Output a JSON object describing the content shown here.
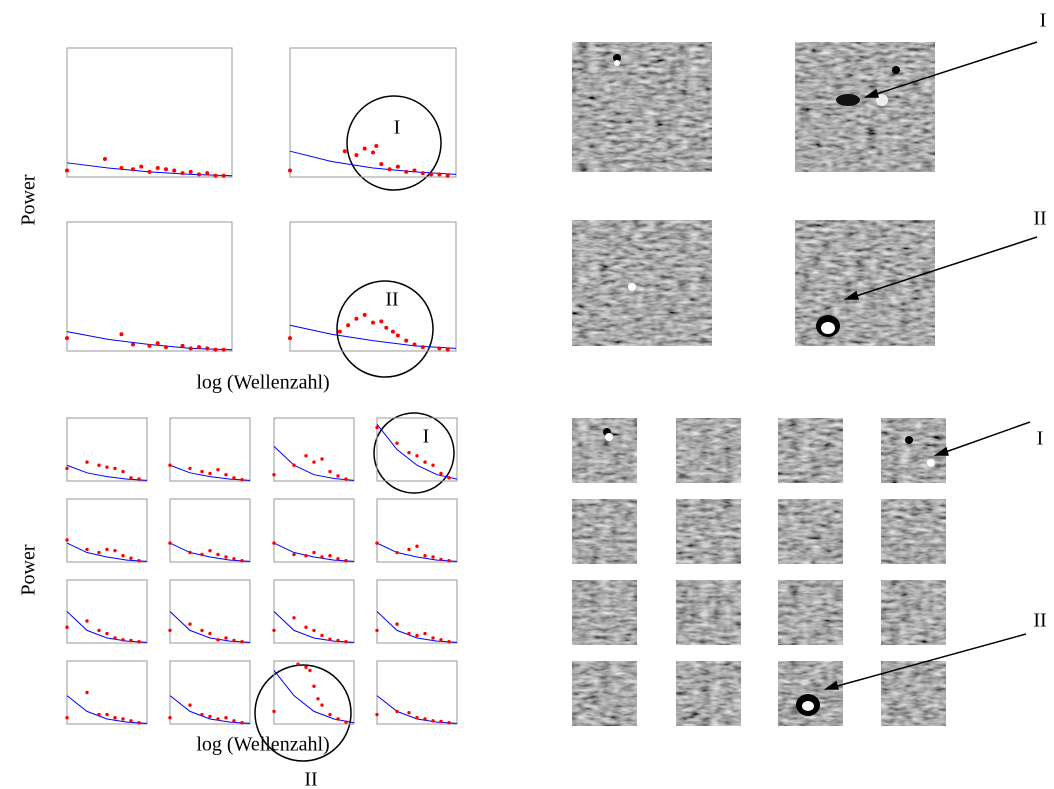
{
  "labels": {
    "y_label_top": "Power",
    "x_label_top": "log (Wellenzahl)",
    "y_label_bottom": "Power",
    "x_label_bottom": "log (Wellenzahl)"
  },
  "annotations": [
    {
      "text": "I"
    },
    {
      "text": "II"
    },
    {
      "text": "I"
    },
    {
      "text": "II"
    },
    {
      "text": "I"
    },
    {
      "text": "II"
    },
    {
      "text": "I"
    },
    {
      "text": "II"
    }
  ],
  "chart_data": [
    {
      "type": "scatter",
      "xlim": [
        0,
        1
      ],
      "ylim": [
        0,
        1
      ],
      "points": {
        "color": "#ff0000",
        "x": [
          0,
          0.23,
          0.33,
          0.4,
          0.45,
          0.5,
          0.55,
          0.6,
          0.65,
          0.7,
          0.75,
          0.8,
          0.85,
          0.9,
          0.95
        ],
        "values": [
          0.05,
          0.14,
          0.07,
          0.06,
          0.08,
          0.04,
          0.07,
          0.06,
          0.05,
          0.03,
          0.04,
          0.02,
          0.03,
          0.01,
          0.01
        ]
      },
      "fit": {
        "color": "#0000ff",
        "x": [
          0,
          0.25,
          0.5,
          0.75,
          1
        ],
        "values": [
          0.11,
          0.07,
          0.04,
          0.02,
          0.01
        ]
      }
    },
    {
      "type": "scatter",
      "xlim": [
        0,
        1
      ],
      "ylim": [
        0,
        1
      ],
      "points": {
        "color": "#ff0000",
        "x": [
          0,
          0.33,
          0.4,
          0.45,
          0.5,
          0.52,
          0.55,
          0.6,
          0.65,
          0.7,
          0.75,
          0.8,
          0.85,
          0.9,
          0.95
        ],
        "values": [
          0.05,
          0.2,
          0.17,
          0.22,
          0.19,
          0.24,
          0.1,
          0.06,
          0.08,
          0.04,
          0.05,
          0.03,
          0.02,
          0.02,
          0.01
        ]
      },
      "fit": {
        "color": "#0000ff",
        "x": [
          0,
          0.25,
          0.5,
          0.75,
          1
        ],
        "values": [
          0.2,
          0.12,
          0.07,
          0.04,
          0.02
        ]
      }
    },
    {
      "type": "scatter",
      "xlim": [
        0,
        1
      ],
      "ylim": [
        0,
        1
      ],
      "points": {
        "color": "#ff0000",
        "x": [
          0,
          0.33,
          0.4,
          0.5,
          0.55,
          0.6,
          0.7,
          0.75,
          0.8,
          0.85,
          0.9,
          0.95
        ],
        "values": [
          0.1,
          0.13,
          0.05,
          0.04,
          0.06,
          0.03,
          0.04,
          0.02,
          0.03,
          0.02,
          0.01,
          0.01
        ]
      },
      "fit": {
        "color": "#0000ff",
        "x": [
          0,
          0.25,
          0.5,
          0.75,
          1
        ],
        "values": [
          0.15,
          0.09,
          0.05,
          0.02,
          0.01
        ]
      }
    },
    {
      "type": "scatter",
      "xlim": [
        0,
        1
      ],
      "ylim": [
        0,
        1
      ],
      "points": {
        "color": "#ff0000",
        "x": [
          0,
          0.3,
          0.35,
          0.4,
          0.45,
          0.5,
          0.55,
          0.58,
          0.62,
          0.65,
          0.7,
          0.75,
          0.8,
          0.9,
          0.95
        ],
        "values": [
          0.1,
          0.15,
          0.2,
          0.25,
          0.28,
          0.22,
          0.23,
          0.18,
          0.15,
          0.12,
          0.08,
          0.05,
          0.03,
          0.02,
          0.01
        ]
      },
      "fit": {
        "color": "#0000ff",
        "x": [
          0,
          0.25,
          0.5,
          0.75,
          1
        ],
        "values": [
          0.2,
          0.13,
          0.08,
          0.04,
          0.02
        ]
      }
    },
    {
      "type": "scatter",
      "xlim": [
        0,
        1
      ],
      "ylim": [
        0,
        1
      ],
      "points": {
        "color": "#ff0000",
        "x": [
          0,
          0.25,
          0.4,
          0.5,
          0.6,
          0.7,
          0.8,
          0.9
        ],
        "values": [
          0.2,
          0.3,
          0.25,
          0.22,
          0.2,
          0.15,
          0.05,
          0.03
        ]
      },
      "fit": {
        "color": "#0000ff",
        "x": [
          0,
          0.25,
          0.5,
          0.75,
          1
        ],
        "values": [
          0.25,
          0.13,
          0.07,
          0.03,
          0.01
        ]
      }
    },
    {
      "type": "scatter",
      "xlim": [
        0,
        1
      ],
      "ylim": [
        0,
        1
      ],
      "points": {
        "color": "#ff0000",
        "x": [
          0,
          0.25,
          0.4,
          0.5,
          0.6,
          0.7,
          0.8,
          0.9
        ],
        "values": [
          0.25,
          0.2,
          0.15,
          0.12,
          0.18,
          0.1,
          0.05,
          0.02
        ]
      },
      "fit": {
        "color": "#0000ff",
        "x": [
          0,
          0.25,
          0.5,
          0.75,
          1
        ],
        "values": [
          0.25,
          0.13,
          0.07,
          0.03,
          0.01
        ]
      }
    },
    {
      "type": "scatter",
      "xlim": [
        0,
        1
      ],
      "ylim": [
        0,
        1
      ],
      "points": {
        "color": "#ff0000",
        "x": [
          0,
          0.25,
          0.4,
          0.5,
          0.6,
          0.7,
          0.8,
          0.9
        ],
        "values": [
          0.1,
          0.25,
          0.4,
          0.3,
          0.35,
          0.15,
          0.08,
          0.03
        ]
      },
      "fit": {
        "color": "#0000ff",
        "x": [
          0,
          0.25,
          0.5,
          0.75,
          1
        ],
        "values": [
          0.55,
          0.25,
          0.1,
          0.04,
          0.01
        ]
      }
    },
    {
      "type": "scatter",
      "xlim": [
        0,
        1
      ],
      "ylim": [
        0,
        1
      ],
      "points": {
        "color": "#ff0000",
        "x": [
          0,
          0.25,
          0.4,
          0.5,
          0.6,
          0.7,
          0.8,
          0.9
        ],
        "values": [
          0.85,
          0.6,
          0.45,
          0.4,
          0.3,
          0.25,
          0.12,
          0.05
        ]
      },
      "fit": {
        "color": "#0000ff",
        "x": [
          0,
          0.25,
          0.5,
          0.75,
          1
        ],
        "values": [
          0.9,
          0.5,
          0.25,
          0.1,
          0.03
        ]
      }
    },
    {
      "type": "scatter",
      "xlim": [
        0,
        1
      ],
      "ylim": [
        0,
        1
      ],
      "points": {
        "color": "#ff0000",
        "x": [
          0,
          0.25,
          0.4,
          0.5,
          0.6,
          0.7,
          0.8,
          0.9
        ],
        "values": [
          0.35,
          0.2,
          0.15,
          0.2,
          0.18,
          0.1,
          0.06,
          0.02
        ]
      },
      "fit": {
        "color": "#0000ff",
        "x": [
          0,
          0.25,
          0.5,
          0.75,
          1
        ],
        "values": [
          0.3,
          0.15,
          0.08,
          0.03,
          0.01
        ]
      }
    },
    {
      "type": "scatter",
      "xlim": [
        0,
        1
      ],
      "ylim": [
        0,
        1
      ],
      "points": {
        "color": "#ff0000",
        "x": [
          0,
          0.25,
          0.4,
          0.5,
          0.6,
          0.7,
          0.8,
          0.9
        ],
        "values": [
          0.3,
          0.15,
          0.12,
          0.18,
          0.12,
          0.08,
          0.05,
          0.02
        ]
      },
      "fit": {
        "color": "#0000ff",
        "x": [
          0,
          0.25,
          0.5,
          0.75,
          1
        ],
        "values": [
          0.3,
          0.15,
          0.08,
          0.03,
          0.01
        ]
      }
    },
    {
      "type": "scatter",
      "xlim": [
        0,
        1
      ],
      "ylim": [
        0,
        1
      ],
      "points": {
        "color": "#ff0000",
        "x": [
          0,
          0.25,
          0.4,
          0.5,
          0.6,
          0.7,
          0.8,
          0.9
        ],
        "values": [
          0.3,
          0.12,
          0.1,
          0.15,
          0.08,
          0.1,
          0.05,
          0.02
        ]
      },
      "fit": {
        "color": "#0000ff",
        "x": [
          0,
          0.25,
          0.5,
          0.75,
          1
        ],
        "values": [
          0.3,
          0.15,
          0.08,
          0.03,
          0.01
        ]
      }
    },
    {
      "type": "scatter",
      "xlim": [
        0,
        1
      ],
      "ylim": [
        0,
        1
      ],
      "points": {
        "color": "#ff0000",
        "x": [
          0,
          0.25,
          0.4,
          0.5,
          0.6,
          0.7,
          0.8,
          0.9
        ],
        "values": [
          0.3,
          0.15,
          0.2,
          0.25,
          0.1,
          0.08,
          0.04,
          0.02
        ]
      },
      "fit": {
        "color": "#0000ff",
        "x": [
          0,
          0.25,
          0.5,
          0.75,
          1
        ],
        "values": [
          0.3,
          0.15,
          0.08,
          0.03,
          0.01
        ]
      }
    },
    {
      "type": "scatter",
      "xlim": [
        0,
        1
      ],
      "ylim": [
        0,
        1
      ],
      "points": {
        "color": "#ff0000",
        "x": [
          0,
          0.25,
          0.4,
          0.5,
          0.6,
          0.7,
          0.8,
          0.9
        ],
        "values": [
          0.25,
          0.35,
          0.2,
          0.15,
          0.08,
          0.05,
          0.04,
          0.02
        ]
      },
      "fit": {
        "color": "#0000ff",
        "x": [
          0,
          0.25,
          0.5,
          0.75,
          1
        ],
        "values": [
          0.5,
          0.2,
          0.08,
          0.03,
          0.01
        ]
      }
    },
    {
      "type": "scatter",
      "xlim": [
        0,
        1
      ],
      "ylim": [
        0,
        1
      ],
      "points": {
        "color": "#ff0000",
        "x": [
          0,
          0.25,
          0.4,
          0.5,
          0.6,
          0.7,
          0.8,
          0.9
        ],
        "values": [
          0.2,
          0.3,
          0.2,
          0.15,
          0.05,
          0.08,
          0.04,
          0.02
        ]
      },
      "fit": {
        "color": "#0000ff",
        "x": [
          0,
          0.25,
          0.5,
          0.75,
          1
        ],
        "values": [
          0.5,
          0.2,
          0.08,
          0.03,
          0.01
        ]
      }
    },
    {
      "type": "scatter",
      "xlim": [
        0,
        1
      ],
      "ylim": [
        0,
        1
      ],
      "points": {
        "color": "#ff0000",
        "x": [
          0,
          0.25,
          0.4,
          0.5,
          0.6,
          0.7,
          0.8,
          0.9
        ],
        "values": [
          0.2,
          0.4,
          0.25,
          0.2,
          0.12,
          0.06,
          0.04,
          0.02
        ]
      },
      "fit": {
        "color": "#0000ff",
        "x": [
          0,
          0.25,
          0.5,
          0.75,
          1
        ],
        "values": [
          0.5,
          0.2,
          0.08,
          0.03,
          0.01
        ]
      }
    },
    {
      "type": "scatter",
      "xlim": [
        0,
        1
      ],
      "ylim": [
        0,
        1
      ],
      "points": {
        "color": "#ff0000",
        "x": [
          0,
          0.25,
          0.4,
          0.5,
          0.6,
          0.7,
          0.8,
          0.9
        ],
        "values": [
          0.2,
          0.3,
          0.15,
          0.12,
          0.15,
          0.08,
          0.05,
          0.02
        ]
      },
      "fit": {
        "color": "#0000ff",
        "x": [
          0,
          0.25,
          0.5,
          0.75,
          1
        ],
        "values": [
          0.5,
          0.2,
          0.08,
          0.03,
          0.01
        ]
      }
    },
    {
      "type": "scatter",
      "xlim": [
        0,
        1
      ],
      "ylim": [
        0,
        1
      ],
      "points": {
        "color": "#ff0000",
        "x": [
          0,
          0.25,
          0.4,
          0.5,
          0.6,
          0.7,
          0.8,
          0.9
        ],
        "values": [
          0.1,
          0.5,
          0.15,
          0.15,
          0.1,
          0.08,
          0.05,
          0.02
        ]
      },
      "fit": {
        "color": "#0000ff",
        "x": [
          0,
          0.25,
          0.5,
          0.75,
          1
        ],
        "values": [
          0.45,
          0.2,
          0.08,
          0.03,
          0.01
        ]
      }
    },
    {
      "type": "scatter",
      "xlim": [
        0,
        1
      ],
      "ylim": [
        0,
        1
      ],
      "points": {
        "color": "#ff0000",
        "x": [
          0,
          0.25,
          0.4,
          0.5,
          0.6,
          0.7,
          0.8,
          0.9
        ],
        "values": [
          0.1,
          0.3,
          0.15,
          0.12,
          0.08,
          0.1,
          0.05,
          0.02
        ]
      },
      "fit": {
        "color": "#0000ff",
        "x": [
          0,
          0.25,
          0.5,
          0.75,
          1
        ],
        "values": [
          0.45,
          0.2,
          0.08,
          0.03,
          0.01
        ]
      }
    },
    {
      "type": "scatter",
      "xlim": [
        0,
        1
      ],
      "ylim": [
        0,
        1
      ],
      "points": {
        "color": "#ff0000",
        "x": [
          0,
          0.3,
          0.4,
          0.45,
          0.5,
          0.55,
          0.6,
          0.7,
          0.8,
          0.9
        ],
        "values": [
          0.2,
          0.95,
          0.9,
          0.85,
          0.6,
          0.4,
          0.3,
          0.15,
          0.08,
          0.03
        ]
      },
      "fit": {
        "color": "#0000ff",
        "x": [
          0,
          0.25,
          0.5,
          0.75,
          1
        ],
        "values": [
          0.85,
          0.45,
          0.2,
          0.08,
          0.02
        ]
      }
    },
    {
      "type": "scatter",
      "xlim": [
        0,
        1
      ],
      "ylim": [
        0,
        1
      ],
      "points": {
        "color": "#ff0000",
        "x": [
          0,
          0.25,
          0.4,
          0.5,
          0.6,
          0.7,
          0.8,
          0.9
        ],
        "values": [
          0.15,
          0.2,
          0.18,
          0.1,
          0.08,
          0.05,
          0.04,
          0.02
        ]
      },
      "fit": {
        "color": "#0000ff",
        "x": [
          0,
          0.25,
          0.5,
          0.75,
          1
        ],
        "values": [
          0.45,
          0.2,
          0.08,
          0.03,
          0.01
        ]
      }
    }
  ]
}
